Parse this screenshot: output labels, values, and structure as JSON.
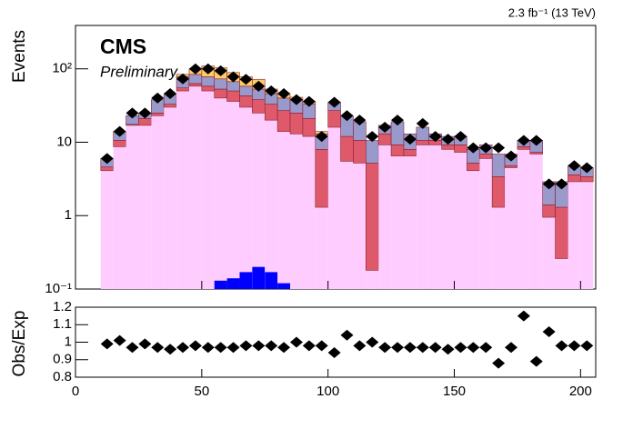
{
  "chart_data": [
    {
      "type": "stacked-histogram",
      "annotations": [
        "CMS",
        "Preliminary"
      ],
      "lumi_label": "2.3 fb⁻¹ (13 TeV)",
      "ylabel": "Events",
      "log_y": true,
      "bins": [
        10,
        15,
        20,
        25,
        30,
        35,
        40,
        45,
        50,
        55,
        60,
        65,
        70,
        75,
        80,
        85,
        90,
        95,
        100,
        105,
        110,
        115,
        120,
        125,
        130,
        135,
        140,
        145,
        150,
        155,
        160,
        165,
        170,
        175,
        180,
        185,
        190,
        195,
        200,
        205
      ],
      "series": [
        {
          "color": "#ffccff",
          "values": [
            4.1,
            8.7,
            17,
            17,
            23,
            30,
            50,
            58,
            50,
            40,
            36,
            30,
            25,
            20,
            14,
            13,
            12,
            1.3,
            16,
            5.5,
            5.2,
            0.18,
            9.2,
            6.5,
            6.5,
            9.2,
            9.2,
            8,
            7.3,
            4.1,
            6,
            1.3,
            4.5,
            8,
            6.9,
            0.95,
            0.26,
            2.9,
            2.9
          ]
        },
        {
          "color": "#de5a6a",
          "values": [
            0.5,
            1.9,
            0.5,
            4,
            2,
            3,
            5,
            5,
            8,
            13,
            14,
            13,
            13,
            13,
            13,
            12,
            9,
            6.7,
            11,
            6.5,
            5.4,
            5,
            3.8,
            2.7,
            1.5,
            1.4,
            1.4,
            1.2,
            1.9,
            1.1,
            0.9,
            2.1,
            0.3,
            0.7,
            0.4,
            0.45,
            1.04,
            0.7,
            0.5
          ]
        },
        {
          "color": "#9999cc",
          "values": [
            1.4,
            3.4,
            5.5,
            4,
            13,
            13,
            23,
            21,
            20,
            20,
            17,
            15,
            15,
            13,
            13,
            13,
            12,
            5,
            8,
            11,
            8.4,
            5.4,
            4,
            9.8,
            5,
            5.4,
            2.4,
            2.8,
            2.8,
            2.8,
            2.3,
            3.5,
            2.1,
            1.9,
            3.3,
            1.5,
            1.6,
            1.2,
            1.1
          ]
        },
        {
          "color": "#ffcc66",
          "values": [
            0,
            0,
            0,
            0,
            0,
            0,
            6,
            16,
            31,
            30,
            22,
            20,
            19,
            7,
            6,
            3,
            3,
            1,
            0,
            0,
            0,
            0,
            0,
            0,
            0,
            0,
            0,
            0,
            0,
            0,
            0,
            0,
            0,
            0,
            0,
            0,
            0,
            0,
            0
          ]
        }
      ],
      "signal": {
        "color": "#0000ff",
        "values": [
          null,
          null,
          null,
          null,
          null,
          null,
          null,
          null,
          null,
          0.13,
          0.14,
          0.17,
          0.2,
          0.17,
          0.12,
          null,
          null,
          null,
          null,
          null,
          null,
          null,
          null,
          null,
          null,
          null,
          null,
          null,
          null,
          null,
          null,
          null,
          null,
          null,
          null,
          null,
          null,
          null,
          null
        ]
      },
      "observed": [
        6,
        14,
        25,
        25,
        40,
        46,
        73,
        100,
        100,
        94,
        78,
        72,
        58,
        50,
        46,
        38,
        36,
        12,
        35,
        23,
        20,
        12,
        16,
        20,
        11,
        18,
        12,
        11,
        12,
        8.4,
        8.4,
        8.4,
        6.5,
        10.6,
        10.6,
        2.7,
        2.7,
        4.8,
        4.5
      ],
      "xlim": [
        0,
        206
      ],
      "xticks": [
        0,
        50,
        100,
        150,
        200
      ],
      "ylim": [
        0.1,
        390
      ],
      "yticks": [
        {
          "value": 0.1,
          "label": "10⁻¹"
        },
        1,
        10,
        {
          "value": 100,
          "label": "10²"
        }
      ]
    },
    {
      "type": "scatter",
      "ylabel": "Obs/Exp",
      "x": [
        12.5,
        17.5,
        22.5,
        27.5,
        32.5,
        37.5,
        42.5,
        47.5,
        52.5,
        57.5,
        62.5,
        67.5,
        72.5,
        77.5,
        82.5,
        87.5,
        92.5,
        97.5,
        102.5,
        107.5,
        112.5,
        117.5,
        122.5,
        127.5,
        132.5,
        137.5,
        142.5,
        147.5,
        152.5,
        157.5,
        162.5,
        167.5,
        172.5,
        177.5,
        182.5,
        187.5,
        192.5,
        197.5,
        202.5
      ],
      "values": [
        0.99,
        1.01,
        0.97,
        0.99,
        0.97,
        0.96,
        0.97,
        0.98,
        0.97,
        0.97,
        0.97,
        0.98,
        0.98,
        0.98,
        0.97,
        1.0,
        0.98,
        0.98,
        0.94,
        1.04,
        0.98,
        1.0,
        0.97,
        0.97,
        0.97,
        0.97,
        0.97,
        0.96,
        0.97,
        0.97,
        0.97,
        0.88,
        0.97,
        1.15,
        0.89,
        1.06,
        0.98,
        0.98,
        0.98
      ],
      "xlim": [
        0,
        206
      ],
      "xticks": [
        0,
        50,
        100,
        150,
        200
      ],
      "ylim": [
        0.8,
        1.2
      ],
      "yticks": [
        0.8,
        0.9,
        1,
        1.1,
        1.2
      ]
    }
  ]
}
